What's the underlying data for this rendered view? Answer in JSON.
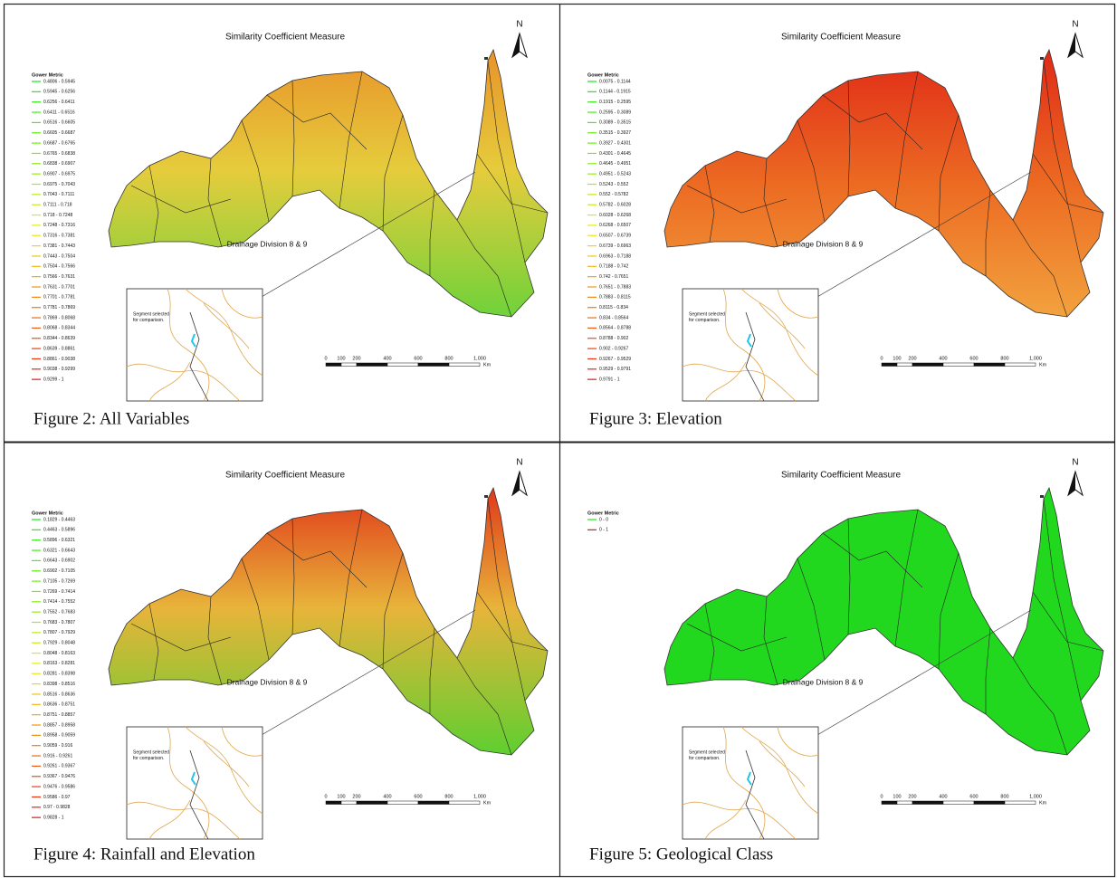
{
  "panels": [
    {
      "title": "Similarity Coefficient Measure",
      "north": "N",
      "legend": {
        "title": "Gower Metric",
        "items": [
          "0.4806 - 0.5945",
          "0.5945 - 0.6256",
          "0.6256 - 0.6411",
          "0.6411 - 0.6516",
          "0.6516 - 0.6605",
          "0.6605 - 0.6687",
          "0.6687 - 0.6765",
          "0.6765 - 0.6838",
          "0.6838 - 0.6907",
          "0.6907 - 0.6975",
          "0.6975 - 0.7043",
          "0.7043 - 0.7111",
          "0.7111 - 0.718",
          "0.718 - 0.7248",
          "0.7248 - 0.7316",
          "0.7316 - 0.7381",
          "0.7381 - 0.7443",
          "0.7443 - 0.7504",
          "0.7504 - 0.7566",
          "0.7566 - 0.7631",
          "0.7631 - 0.7701",
          "0.7701 - 0.7781",
          "0.7781 - 0.7869",
          "0.7869 - 0.8068",
          "0.8068 - 0.8344",
          "0.8344 - 0.8639",
          "0.8639 - 0.8861",
          "0.8861 - 0.9038",
          "0.9038 - 0.9299",
          "0.9299 - 1"
        ]
      },
      "map_label": "Drainage Division 8 & 9",
      "inset_label": [
        "Segment selected",
        "for comparison."
      ],
      "scale": {
        "labels": [
          "0",
          "100",
          "200",
          "400",
          "600",
          "800",
          "1,000"
        ],
        "unit": "Km"
      },
      "caption": "Figure 2: All Variables"
    },
    {
      "title": "Similarity Coefficient Measure",
      "north": "N",
      "legend": {
        "title": "Gower Metric",
        "items": [
          "0.0075 - 0.1144",
          "0.1144 - 0.1915",
          "0.1915 - 0.2595",
          "0.2595 - 0.3089",
          "0.3089 - 0.3515",
          "0.3515 - 0.3927",
          "0.3927 - 0.4301",
          "0.4301 - 0.4645",
          "0.4645 - 0.4951",
          "0.4951 - 0.5243",
          "0.5243 - 0.552",
          "0.552 - 0.5782",
          "0.5782 - 0.6028",
          "0.6028 - 0.6268",
          "0.6268 - 0.6507",
          "0.6507 - 0.6739",
          "0.6739 - 0.6963",
          "0.6963 - 0.7188",
          "0.7188 - 0.742",
          "0.742 - 0.7651",
          "0.7651 - 0.7883",
          "0.7883 - 0.8115",
          "0.8115 - 0.834",
          "0.834 - 0.8564",
          "0.8564 - 0.8788",
          "0.8788 - 0.902",
          "0.902 - 0.9267",
          "0.9267 - 0.9529",
          "0.9529 - 0.9791",
          "0.9791 - 1"
        ]
      },
      "map_label": "Drainage Division 8 & 9",
      "inset_label": [
        "Segment selected",
        "for comparison."
      ],
      "scale": {
        "labels": [
          "0",
          "100",
          "200",
          "400",
          "600",
          "800",
          "1,000"
        ],
        "unit": "Km"
      },
      "caption": "Figure 3: Elevation"
    },
    {
      "title": "Similarity Coefficient Measure",
      "north": "N",
      "legend": {
        "title": "Gower Metric",
        "items": [
          "0.1829 - 0.4463",
          "0.4463 - 0.5896",
          "0.5896 - 0.6321",
          "0.6321 - 0.6643",
          "0.6643 - 0.6902",
          "0.6902 - 0.7105",
          "0.7105 - 0.7269",
          "0.7269 - 0.7414",
          "0.7414 - 0.7552",
          "0.7552 - 0.7683",
          "0.7683 - 0.7807",
          "0.7807 - 0.7929",
          "0.7929 - 0.8048",
          "0.8048 - 0.8163",
          "0.8163 - 0.8281",
          "0.8281 - 0.8398",
          "0.8398 - 0.8516",
          "0.8516 - 0.8636",
          "0.8636 - 0.8751",
          "0.8751 - 0.8857",
          "0.8857 - 0.8958",
          "0.8958 - 0.9059",
          "0.9059 - 0.916",
          "0.916 - 0.9261",
          "0.9261 - 0.9367",
          "0.9367 - 0.9476",
          "0.9476 - 0.9586",
          "0.9586 - 0.97",
          "0.97 - 0.9828",
          "0.9828 - 1"
        ]
      },
      "map_label": "Drainage Division 8 & 9",
      "inset_label": [
        "Segment selected",
        "for comparison."
      ],
      "scale": {
        "labels": [
          "0",
          "100",
          "200",
          "400",
          "600",
          "800",
          "1,000"
        ],
        "unit": "Km"
      },
      "caption": "Figure 4: Rainfall and Elevation"
    },
    {
      "title": "Similarity Coefficient Measure",
      "north": "N",
      "legend": {
        "title": "Gower Metric",
        "items": [
          "0 - 0",
          "0 - 1"
        ]
      },
      "map_label": "Drainage Division 8 & 9",
      "inset_label": [
        "Segment selected",
        "for comparison."
      ],
      "scale": {
        "labels": [
          "0",
          "100",
          "200",
          "400",
          "600",
          "800",
          "1,000"
        ],
        "unit": "Km"
      },
      "caption": "Figure 5: Geological Class"
    }
  ]
}
